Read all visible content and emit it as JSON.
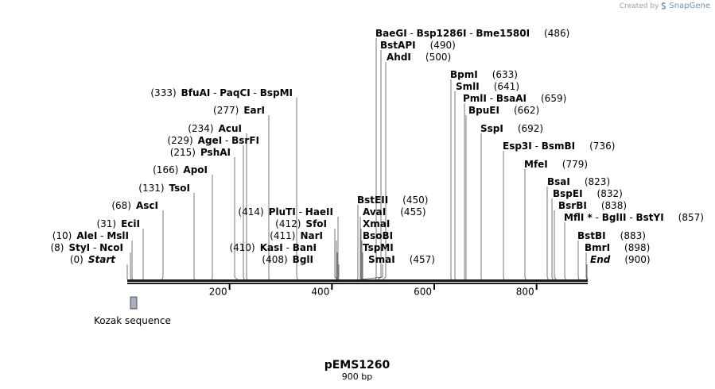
{
  "credit": {
    "prefix": "Created by",
    "brand": "SnapGene"
  },
  "title": "pEMS1260",
  "subtitle": "900 bp",
  "ticks": [
    "200",
    "400",
    "600",
    "800"
  ],
  "feature": {
    "name": "Kozak sequence"
  },
  "sites": [
    {
      "names": [
        "BaeGI",
        "Bsp1286I",
        "Bme1580I"
      ],
      "pos": "486"
    },
    {
      "names": [
        "BstAPI"
      ],
      "pos": "490"
    },
    {
      "names": [
        "AhdI"
      ],
      "pos": "500"
    },
    {
      "names": [
        "BpmI"
      ],
      "pos": "633"
    },
    {
      "names": [
        "SmlI"
      ],
      "pos": "641"
    },
    {
      "names": [
        "PmlI",
        "BsaAI"
      ],
      "pos": "659"
    },
    {
      "names": [
        "BpuEI"
      ],
      "pos": "662"
    },
    {
      "names": [
        "SspI"
      ],
      "pos": "692"
    },
    {
      "names": [
        "Esp3I",
        "BsmBI"
      ],
      "pos": "736"
    },
    {
      "names": [
        "MfeI"
      ],
      "pos": "779"
    },
    {
      "names": [
        "BsaI"
      ],
      "pos": "823"
    },
    {
      "names": [
        "BspEI"
      ],
      "pos": "832"
    },
    {
      "names": [
        "BsrBI"
      ],
      "pos": "838"
    },
    {
      "names": [
        "MflI *",
        "BglII",
        "BstYI"
      ],
      "pos": "857"
    },
    {
      "names": [
        "BstBI"
      ],
      "pos": "883"
    },
    {
      "names": [
        "BmrI"
      ],
      "pos": "898"
    },
    {
      "names": [
        "End"
      ],
      "pos": "900"
    },
    {
      "names": [
        "BstEII"
      ],
      "pos": "450"
    },
    {
      "names": [
        "AvaI"
      ],
      "pos": "455"
    },
    {
      "names": [
        "XmaI"
      ],
      "pos": ""
    },
    {
      "names": [
        "BsoBI"
      ],
      "pos": ""
    },
    {
      "names": [
        "TspMI"
      ],
      "pos": ""
    },
    {
      "names": [
        "SmaI"
      ],
      "pos": "457"
    },
    {
      "names": [
        "BfuAI",
        "PaqCI",
        "BspMI"
      ],
      "pos": "333"
    },
    {
      "names": [
        "EarI"
      ],
      "pos": "277"
    },
    {
      "names": [
        "AcuI"
      ],
      "pos": "234"
    },
    {
      "names": [
        "AgeI",
        "BsrFI"
      ],
      "pos": "229"
    },
    {
      "names": [
        "PshAI"
      ],
      "pos": "215"
    },
    {
      "names": [
        "ApoI"
      ],
      "pos": "166"
    },
    {
      "names": [
        "TsoI"
      ],
      "pos": "131"
    },
    {
      "names": [
        "AscI"
      ],
      "pos": "68"
    },
    {
      "names": [
        "EciI"
      ],
      "pos": "31"
    },
    {
      "names": [
        "AleI",
        "MslI"
      ],
      "pos": "10"
    },
    {
      "names": [
        "StyI",
        "NcoI"
      ],
      "pos": "8"
    },
    {
      "names": [
        "Start"
      ],
      "pos": "0"
    },
    {
      "names": [
        "PluTI",
        "HaeII"
      ],
      "pos": "414"
    },
    {
      "names": [
        "SfoI"
      ],
      "pos": "412"
    },
    {
      "names": [
        "NarI"
      ],
      "pos": "411"
    },
    {
      "names": [
        "KasI",
        "BanI"
      ],
      "pos": "410"
    },
    {
      "names": [
        "BglI"
      ],
      "pos": "408"
    }
  ]
}
